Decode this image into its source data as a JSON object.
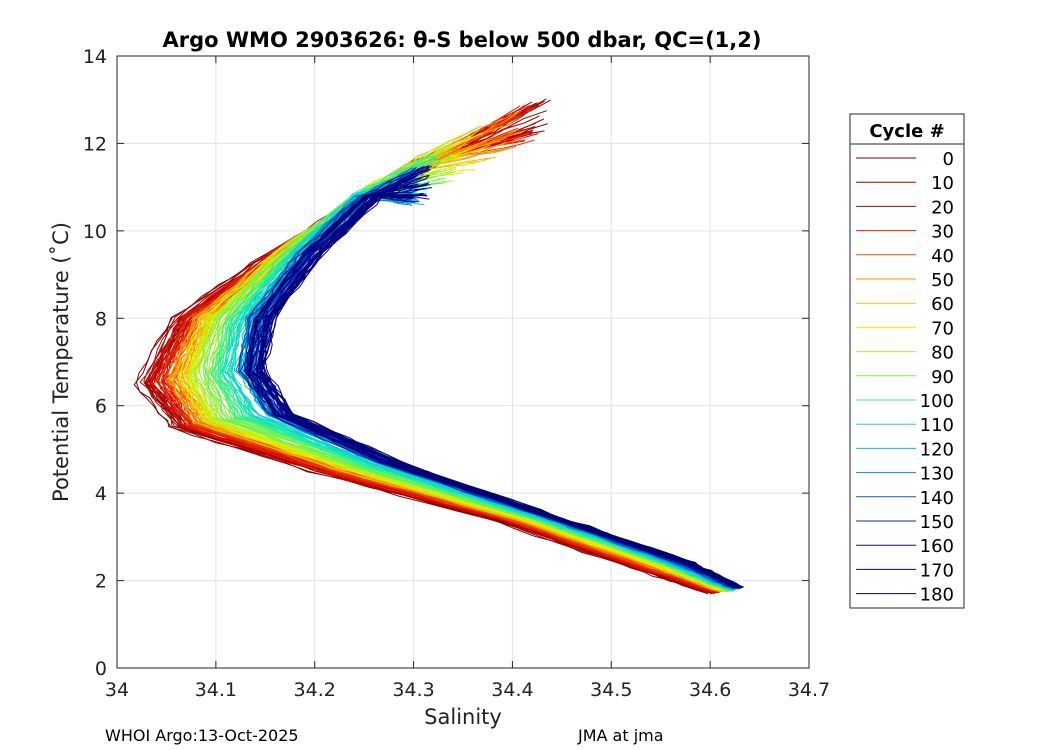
{
  "chart_data": {
    "type": "line",
    "title": "Argo WMO 2903626: θ-S below 500 dbar,  QC=(1,2)",
    "xlabel": "Salinity",
    "ylabel": "Potential Temperature (˚C)",
    "xlim": [
      34,
      34.7
    ],
    "ylim": [
      0,
      14
    ],
    "xticks": [
      34,
      34.1,
      34.2,
      34.3,
      34.4,
      34.5,
      34.6,
      34.7
    ],
    "xtick_labels": [
      "34",
      "34.1",
      "34.2",
      "34.3",
      "34.4",
      "34.5",
      "34.6",
      "34.7"
    ],
    "yticks": [
      0,
      2,
      4,
      6,
      8,
      10,
      12,
      14
    ],
    "ytick_labels": [
      "0",
      "2",
      "4",
      "6",
      "8",
      "10",
      "12",
      "14"
    ],
    "grid": true,
    "legend": {
      "title": "Cycle #",
      "placement": "right",
      "entries": [
        {
          "label": "0",
          "color": "#800000"
        },
        {
          "label": "10",
          "color": "#9c0000"
        },
        {
          "label": "20",
          "color": "#c40000"
        },
        {
          "label": "30",
          "color": "#e61a00"
        },
        {
          "label": "40",
          "color": "#f24d00"
        },
        {
          "label": "50",
          "color": "#f59000"
        },
        {
          "label": "60",
          "color": "#f0c000"
        },
        {
          "label": "70",
          "color": "#f0f000"
        },
        {
          "label": "80",
          "color": "#b3f020"
        },
        {
          "label": "90",
          "color": "#70f050"
        },
        {
          "label": "100",
          "color": "#30f090"
        },
        {
          "label": "110",
          "color": "#10e0c0"
        },
        {
          "label": "120",
          "color": "#00c0e0"
        },
        {
          "label": "130",
          "color": "#0090d0"
        },
        {
          "label": "140",
          "color": "#0060c0"
        },
        {
          "label": "150",
          "color": "#0030b0"
        },
        {
          "label": "160",
          "color": "#0010a0"
        },
        {
          "label": "170",
          "color": "#000090"
        },
        {
          "label": "180",
          "color": "#000070"
        }
      ]
    },
    "series_model": {
      "description": "θ-S profiles per cycle, keypoints (salinity, theta) for representative cycles",
      "series": [
        {
          "name": "0",
          "points": [
            [
              34.43,
              13.0
            ],
            [
              34.32,
              11.6
            ],
            [
              34.16,
              9.5
            ],
            [
              34.06,
              8.0
            ],
            [
              34.025,
              6.5
            ],
            [
              34.06,
              5.5
            ],
            [
              34.2,
              4.5
            ],
            [
              34.38,
              3.4
            ],
            [
              34.52,
              2.3
            ],
            [
              34.6,
              1.7
            ]
          ]
        },
        {
          "name": "40",
          "points": [
            [
              34.41,
              12.8
            ],
            [
              34.31,
              11.6
            ],
            [
              34.17,
              9.5
            ],
            [
              34.08,
              8.0
            ],
            [
              34.05,
              6.6
            ],
            [
              34.08,
              5.6
            ],
            [
              34.22,
              4.55
            ],
            [
              34.4,
              3.4
            ],
            [
              34.54,
              2.3
            ],
            [
              34.61,
              1.75
            ]
          ]
        },
        {
          "name": "80",
          "points": [
            [
              34.34,
              12.0
            ],
            [
              34.26,
              11.0
            ],
            [
              34.17,
              9.5
            ],
            [
              34.1,
              8.0
            ],
            [
              34.08,
              6.7
            ],
            [
              34.1,
              5.7
            ],
            [
              34.24,
              4.6
            ],
            [
              34.42,
              3.4
            ],
            [
              34.56,
              2.3
            ],
            [
              34.62,
              1.75
            ]
          ]
        },
        {
          "name": "120",
          "points": [
            [
              34.3,
              11.4
            ],
            [
              34.25,
              10.8
            ],
            [
              34.19,
              9.5
            ],
            [
              34.14,
              8.0
            ],
            [
              34.13,
              6.8
            ],
            [
              34.16,
              5.8
            ],
            [
              34.27,
              4.7
            ],
            [
              34.44,
              3.4
            ],
            [
              34.57,
              2.35
            ],
            [
              34.625,
              1.8
            ]
          ]
        },
        {
          "name": "180",
          "points": [
            [
              34.31,
              11.5
            ],
            [
              34.26,
              10.8
            ],
            [
              34.2,
              9.5
            ],
            [
              34.15,
              8.0
            ],
            [
              34.14,
              6.8
            ],
            [
              34.17,
              5.8
            ],
            [
              34.28,
              4.7
            ],
            [
              34.45,
              3.4
            ],
            [
              34.58,
              2.4
            ],
            [
              34.63,
              1.85
            ]
          ]
        }
      ]
    }
  },
  "footer": {
    "left": "WHOI Argo:13-Oct-2025",
    "right": "JMA at jma"
  }
}
